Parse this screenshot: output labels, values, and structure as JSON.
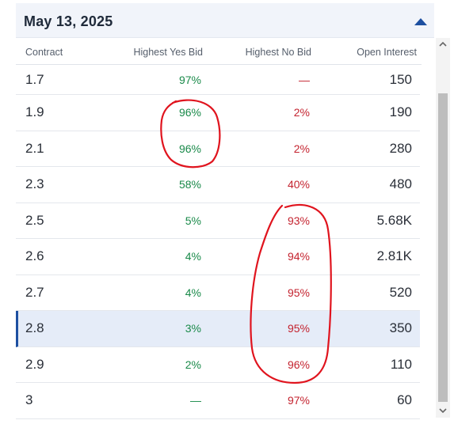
{
  "header": {
    "title": "May 13, 2025"
  },
  "columns": {
    "contract": "Contract",
    "yes": "Highest Yes Bid",
    "no": "Highest No Bid",
    "oi": "Open Interest"
  },
  "rows": [
    {
      "contract": "1.7",
      "yes": "97%",
      "no": "—",
      "oi": "150"
    },
    {
      "contract": "1.9",
      "yes": "96%",
      "no": "2%",
      "oi": "190"
    },
    {
      "contract": "2.1",
      "yes": "96%",
      "no": "2%",
      "oi": "280"
    },
    {
      "contract": "2.3",
      "yes": "58%",
      "no": "40%",
      "oi": "480"
    },
    {
      "contract": "2.5",
      "yes": "5%",
      "no": "93%",
      "oi": "5.68K"
    },
    {
      "contract": "2.6",
      "yes": "4%",
      "no": "94%",
      "oi": "2.81K"
    },
    {
      "contract": "2.7",
      "yes": "4%",
      "no": "95%",
      "oi": "520"
    },
    {
      "contract": "2.8",
      "yes": "3%",
      "no": "95%",
      "oi": "350"
    },
    {
      "contract": "2.9",
      "yes": "2%",
      "no": "96%",
      "oi": "110"
    },
    {
      "contract": "3",
      "yes": "—",
      "no": "97%",
      "oi": "60"
    }
  ],
  "colors": {
    "yes": "#1a8a4a",
    "no": "#c4232f",
    "accent": "#1d4fa0",
    "annotation": "#e0141e"
  },
  "icons": {
    "collapse": "triangle-up-icon",
    "scroll_up": "chevron-up-icon",
    "scroll_down": "chevron-down-icon"
  }
}
